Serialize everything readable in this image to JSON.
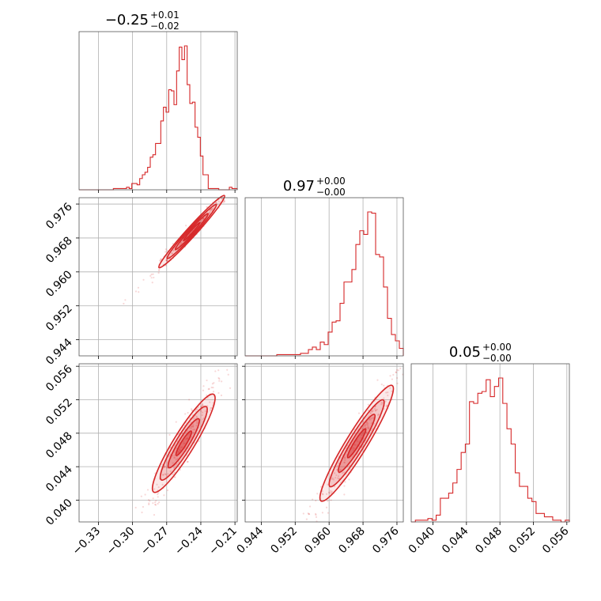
{
  "chart_data": {
    "type": "corner",
    "color": "#d62728",
    "grid": true,
    "params": [
      {
        "title": {
          "main": "−0.25",
          "sup": "+0.01",
          "sub": "−0.02"
        },
        "range": [
          -0.347,
          -0.208
        ],
        "ticks": [
          -0.33,
          -0.3,
          -0.27,
          -0.24,
          -0.21
        ],
        "tick_labels": [
          "−0.33",
          "−0.30",
          "−0.27",
          "−0.24",
          "−0.21"
        ]
      },
      {
        "title": {
          "main": "0.97",
          "sup": "+0.00",
          "sub": "−0.00"
        },
        "range": [
          0.9402,
          0.9775
        ],
        "ticks": [
          0.944,
          0.952,
          0.96,
          0.968,
          0.976
        ],
        "tick_labels": [
          "0.944",
          "0.952",
          "0.960",
          "0.968",
          "0.976"
        ]
      },
      {
        "title": {
          "main": "0.05",
          "sup": "+0.00",
          "sub": "−0.00"
        },
        "range": [
          0.0374,
          0.0563
        ],
        "ticks": [
          0.04,
          0.044,
          0.048,
          0.052,
          0.056
        ],
        "tick_labels": [
          "0.040",
          "0.044",
          "0.048",
          "0.052",
          "0.056"
        ]
      }
    ],
    "histograms": [
      {
        "edges_start": -0.347,
        "edges_end": -0.208,
        "counts": [
          0,
          0,
          0,
          0,
          0,
          0,
          0,
          0,
          0,
          0,
          0,
          0,
          0,
          1,
          1,
          1,
          1,
          1,
          2,
          1,
          5,
          5,
          4,
          9,
          12,
          14,
          18,
          26,
          28,
          37,
          37,
          55,
          66,
          62,
          80,
          79,
          68,
          95,
          114,
          104,
          115,
          84,
          69,
          70,
          50,
          42,
          27,
          12,
          12,
          1,
          1,
          1,
          1,
          0,
          0,
          0,
          0,
          2,
          1,
          1
        ]
      },
      {
        "edges_start": 0.9402,
        "edges_end": 0.9775,
        "counts": [
          0,
          0,
          0,
          0,
          0,
          0,
          0,
          0,
          1,
          1,
          1,
          1,
          1,
          1,
          2,
          2,
          5,
          7,
          5,
          11,
          9,
          19,
          27,
          28,
          42,
          59,
          59,
          69,
          89,
          100,
          97,
          115,
          114,
          81,
          79,
          55,
          30,
          17,
          12,
          6
        ]
      },
      {
        "edges_start": 0.0374,
        "edges_end": 0.0563,
        "counts": [
          0,
          1,
          1,
          1,
          2,
          1,
          4,
          14,
          14,
          17,
          23,
          31,
          41,
          46,
          71,
          70,
          76,
          77,
          84,
          74,
          80,
          85,
          70,
          55,
          46,
          29,
          21,
          21,
          14,
          12,
          5,
          5,
          3,
          3,
          1,
          1,
          0,
          1
        ]
      }
    ],
    "pairs": [
      {
        "x_param": 0,
        "y_param": 1
      },
      {
        "x_param": 0,
        "y_param": 2
      },
      {
        "x_param": 1,
        "y_param": 2
      }
    ]
  }
}
